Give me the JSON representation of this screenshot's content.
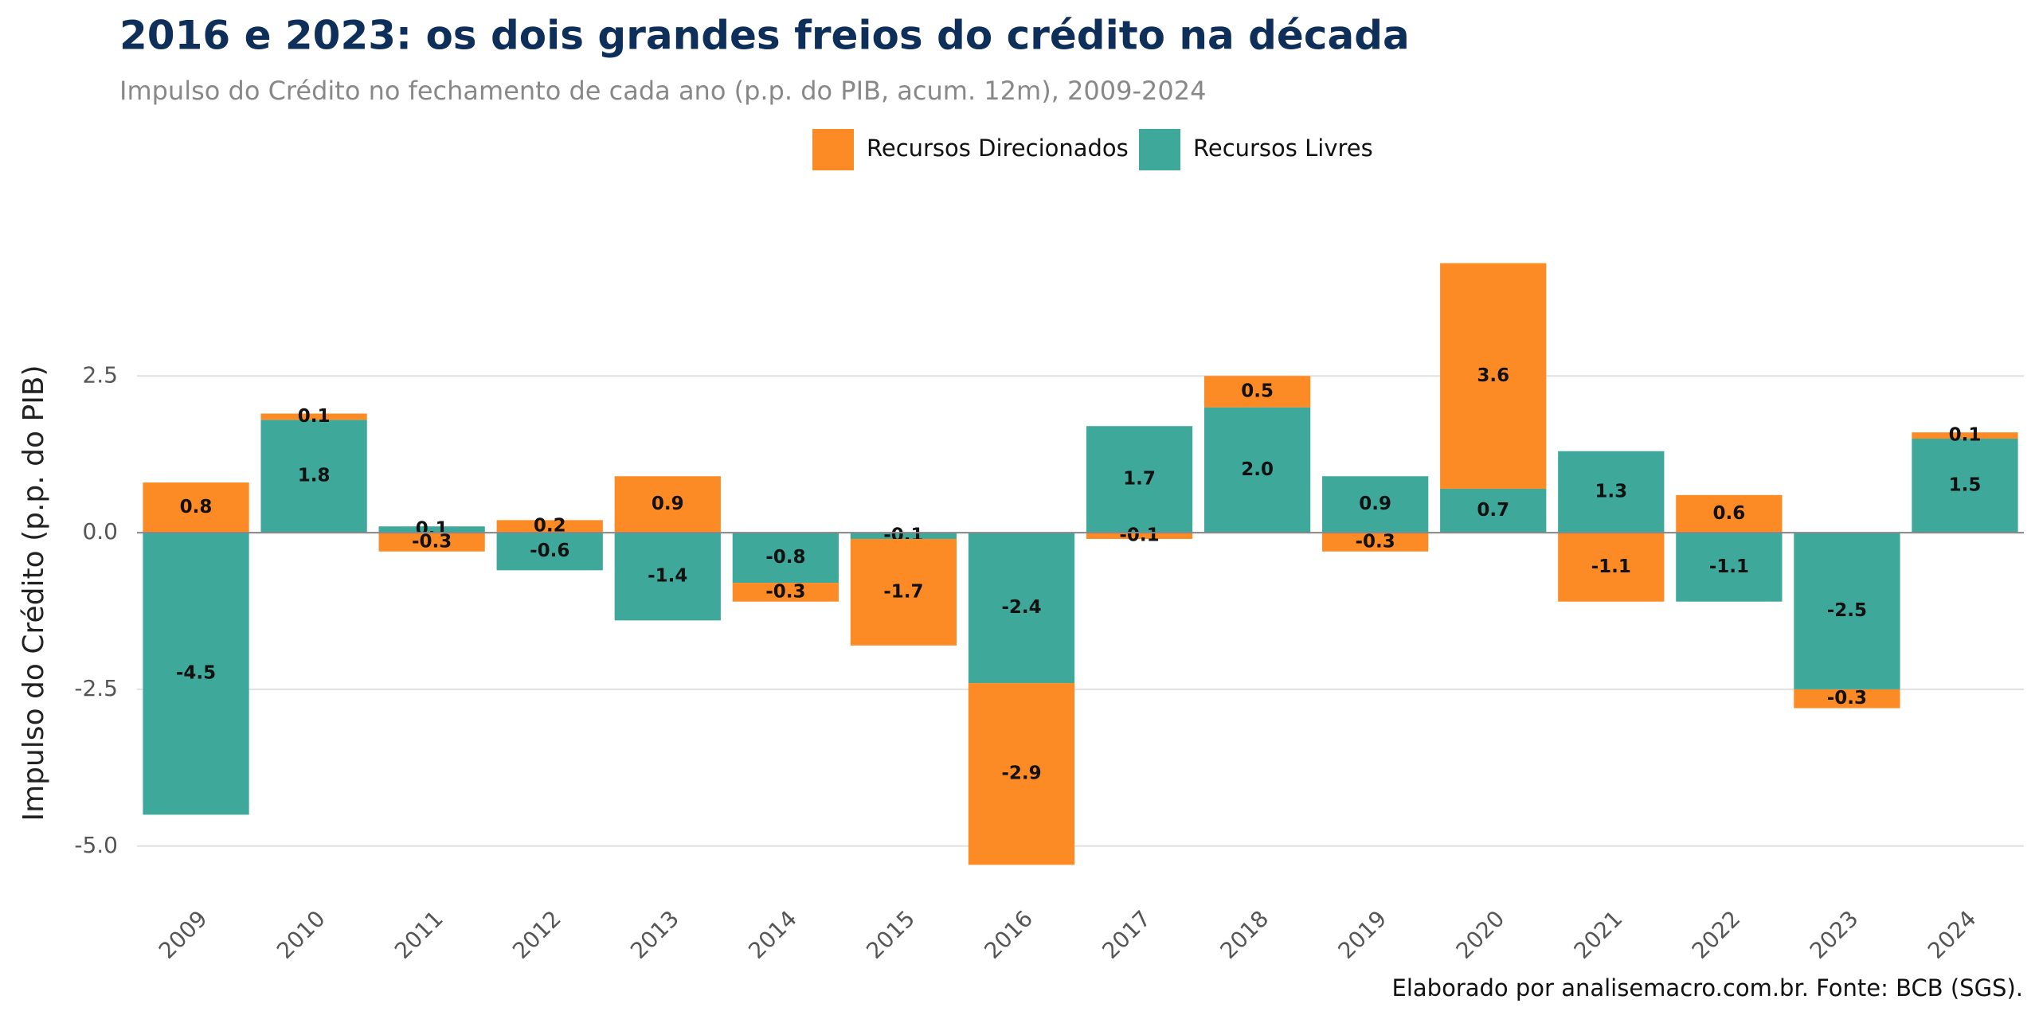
{
  "chart_data": {
    "type": "stacked_bar",
    "title": "2016 e 2023: os dois grandes freios do crédito na década",
    "subtitle": "Impulso do Crédito no fechamento de cada ano (p.p. do PIB, acum. 12m), 2009-2024",
    "y_label": "Impulso do Crédito (p.p. do PIB)",
    "caption": "Elaborado por analisemacro.com.br. Fonte: BCB (SGS).",
    "categories": [
      "2009",
      "2010",
      "2011",
      "2012",
      "2013",
      "2014",
      "2015",
      "2016",
      "2017",
      "2018",
      "2019",
      "2020",
      "2021",
      "2022",
      "2023",
      "2024"
    ],
    "series": [
      {
        "name": "Recursos Direcionados",
        "color": "#fd8b25",
        "values": [
          0.8,
          0.1,
          -0.3,
          0.2,
          0.9,
          -0.3,
          -1.7,
          -2.9,
          -0.1,
          0.5,
          -0.3,
          3.6,
          -1.1,
          0.6,
          -0.3,
          0.1
        ],
        "value_labels": [
          "0.8",
          "0.1",
          "-0.3",
          "0.2",
          "0.9",
          "-0.3",
          "-1.7",
          "-2.9",
          "-0.1",
          "0.5",
          "-0.3",
          "3.6",
          "-1.1",
          "0.6",
          "-0.3",
          "0.1"
        ]
      },
      {
        "name": "Recursos Livres",
        "color": "#3ea99b",
        "values": [
          -4.5,
          1.8,
          0.1,
          -0.6,
          -1.4,
          -0.8,
          -0.1,
          -2.4,
          1.7,
          2.0,
          0.9,
          0.7,
          1.3,
          -1.1,
          -2.5,
          1.5
        ],
        "value_labels": [
          "-4.5",
          "1.8",
          "0.1",
          "-0.6",
          "-1.4",
          "-0.8",
          "-0.1",
          "-2.4",
          "1.7",
          "2.0",
          "0.9",
          "0.7",
          "1.3",
          "-1.1",
          "-2.5",
          "1.5"
        ]
      }
    ],
    "ylim": [
      -5.6,
      5.45
    ],
    "yticks": [
      {
        "value": -5,
        "label": "-5.0"
      },
      -2.5,
      {
        "value": 0,
        "label": "0.0"
      },
      2.5
    ],
    "grid": true
  }
}
